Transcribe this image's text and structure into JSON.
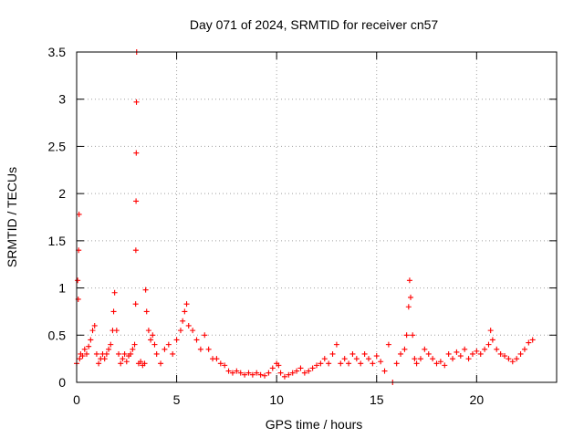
{
  "chart_data": {
    "type": "scatter",
    "title": "Day 071 of 2024, SRMTID for receiver cn57",
    "xlabel": "GPS time / hours",
    "ylabel": "SRMTID / TECUs",
    "xlim": [
      0,
      24
    ],
    "ylim": [
      0,
      3.5
    ],
    "xticks": [
      0,
      5,
      10,
      15,
      20
    ],
    "xtick_labels": [
      "0",
      "5",
      "10",
      "15",
      "20"
    ],
    "yticks": [
      0,
      0.5,
      1,
      1.5,
      2,
      2.5,
      3,
      3.5
    ],
    "ytick_labels": [
      "0",
      "0.5",
      "1",
      "1.5",
      "2",
      "2.5",
      "3",
      "3.5"
    ],
    "grid": true,
    "marker": "plus",
    "color": "#ff0000",
    "series": [
      {
        "name": "SRMTID",
        "points": [
          [
            0.0,
            0.2
          ],
          [
            0.05,
            1.08
          ],
          [
            0.08,
            0.88
          ],
          [
            0.1,
            1.4
          ],
          [
            0.12,
            1.78
          ],
          [
            0.15,
            0.25
          ],
          [
            0.2,
            0.3
          ],
          [
            0.3,
            0.28
          ],
          [
            0.4,
            0.35
          ],
          [
            0.5,
            0.3
          ],
          [
            0.6,
            0.38
          ],
          [
            0.7,
            0.45
          ],
          [
            0.8,
            0.55
          ],
          [
            0.9,
            0.6
          ],
          [
            1.0,
            0.3
          ],
          [
            1.1,
            0.2
          ],
          [
            1.2,
            0.25
          ],
          [
            1.3,
            0.3
          ],
          [
            1.4,
            0.25
          ],
          [
            1.5,
            0.3
          ],
          [
            1.6,
            0.35
          ],
          [
            1.7,
            0.4
          ],
          [
            1.8,
            0.55
          ],
          [
            1.85,
            0.75
          ],
          [
            1.9,
            0.95
          ],
          [
            2.0,
            0.55
          ],
          [
            2.1,
            0.3
          ],
          [
            2.2,
            0.2
          ],
          [
            2.3,
            0.25
          ],
          [
            2.4,
            0.3
          ],
          [
            2.5,
            0.22
          ],
          [
            2.6,
            0.28
          ],
          [
            2.7,
            0.3
          ],
          [
            2.8,
            0.35
          ],
          [
            2.9,
            0.4
          ],
          [
            2.95,
            0.83
          ],
          [
            2.96,
            1.4
          ],
          [
            2.97,
            1.92
          ],
          [
            2.98,
            2.43
          ],
          [
            2.99,
            2.97
          ],
          [
            3.0,
            3.5
          ],
          [
            3.1,
            0.2
          ],
          [
            3.2,
            0.22
          ],
          [
            3.3,
            0.18
          ],
          [
            3.4,
            0.2
          ],
          [
            3.45,
            0.98
          ],
          [
            3.5,
            0.75
          ],
          [
            3.6,
            0.55
          ],
          [
            3.7,
            0.45
          ],
          [
            3.8,
            0.5
          ],
          [
            3.9,
            0.4
          ],
          [
            4.0,
            0.3
          ],
          [
            4.2,
            0.2
          ],
          [
            4.4,
            0.35
          ],
          [
            4.6,
            0.4
          ],
          [
            4.8,
            0.3
          ],
          [
            5.0,
            0.45
          ],
          [
            5.2,
            0.55
          ],
          [
            5.3,
            0.65
          ],
          [
            5.4,
            0.75
          ],
          [
            5.5,
            0.83
          ],
          [
            5.6,
            0.6
          ],
          [
            5.8,
            0.55
          ],
          [
            6.0,
            0.45
          ],
          [
            6.2,
            0.35
          ],
          [
            6.4,
            0.5
          ],
          [
            6.6,
            0.35
          ],
          [
            6.8,
            0.25
          ],
          [
            7.0,
            0.25
          ],
          [
            7.2,
            0.2
          ],
          [
            7.4,
            0.18
          ],
          [
            7.6,
            0.12
          ],
          [
            7.8,
            0.1
          ],
          [
            8.0,
            0.12
          ],
          [
            8.2,
            0.1
          ],
          [
            8.4,
            0.08
          ],
          [
            8.6,
            0.1
          ],
          [
            8.8,
            0.08
          ],
          [
            9.0,
            0.1
          ],
          [
            9.2,
            0.08
          ],
          [
            9.4,
            0.07
          ],
          [
            9.6,
            0.1
          ],
          [
            9.8,
            0.15
          ],
          [
            10.0,
            0.2
          ],
          [
            10.1,
            0.18
          ],
          [
            10.2,
            0.1
          ],
          [
            10.4,
            0.06
          ],
          [
            10.6,
            0.08
          ],
          [
            10.8,
            0.1
          ],
          [
            11.0,
            0.12
          ],
          [
            11.2,
            0.15
          ],
          [
            11.4,
            0.1
          ],
          [
            11.6,
            0.12
          ],
          [
            11.8,
            0.15
          ],
          [
            12.0,
            0.18
          ],
          [
            12.2,
            0.2
          ],
          [
            12.4,
            0.25
          ],
          [
            12.6,
            0.2
          ],
          [
            12.8,
            0.3
          ],
          [
            13.0,
            0.4
          ],
          [
            13.2,
            0.2
          ],
          [
            13.4,
            0.25
          ],
          [
            13.6,
            0.2
          ],
          [
            13.8,
            0.3
          ],
          [
            14.0,
            0.25
          ],
          [
            14.2,
            0.2
          ],
          [
            14.4,
            0.3
          ],
          [
            14.6,
            0.25
          ],
          [
            14.8,
            0.2
          ],
          [
            15.0,
            0.28
          ],
          [
            15.2,
            0.22
          ],
          [
            15.4,
            0.12
          ],
          [
            15.6,
            0.4
          ],
          [
            15.8,
            0.0
          ],
          [
            16.0,
            0.2
          ],
          [
            16.2,
            0.3
          ],
          [
            16.4,
            0.35
          ],
          [
            16.5,
            0.5
          ],
          [
            16.6,
            0.8
          ],
          [
            16.65,
            1.08
          ],
          [
            16.7,
            0.9
          ],
          [
            16.8,
            0.5
          ],
          [
            16.9,
            0.25
          ],
          [
            17.0,
            0.2
          ],
          [
            17.2,
            0.25
          ],
          [
            17.4,
            0.35
          ],
          [
            17.6,
            0.3
          ],
          [
            17.8,
            0.25
          ],
          [
            18.0,
            0.2
          ],
          [
            18.2,
            0.22
          ],
          [
            18.4,
            0.18
          ],
          [
            18.6,
            0.3
          ],
          [
            18.8,
            0.25
          ],
          [
            19.0,
            0.32
          ],
          [
            19.2,
            0.28
          ],
          [
            19.4,
            0.35
          ],
          [
            19.6,
            0.25
          ],
          [
            19.8,
            0.3
          ],
          [
            20.0,
            0.33
          ],
          [
            20.2,
            0.3
          ],
          [
            20.4,
            0.35
          ],
          [
            20.6,
            0.4
          ],
          [
            20.7,
            0.55
          ],
          [
            20.8,
            0.45
          ],
          [
            21.0,
            0.35
          ],
          [
            21.2,
            0.3
          ],
          [
            21.4,
            0.28
          ],
          [
            21.6,
            0.25
          ],
          [
            21.8,
            0.22
          ],
          [
            22.0,
            0.25
          ],
          [
            22.2,
            0.3
          ],
          [
            22.4,
            0.35
          ],
          [
            22.6,
            0.42
          ],
          [
            22.8,
            0.45
          ]
        ]
      }
    ]
  }
}
